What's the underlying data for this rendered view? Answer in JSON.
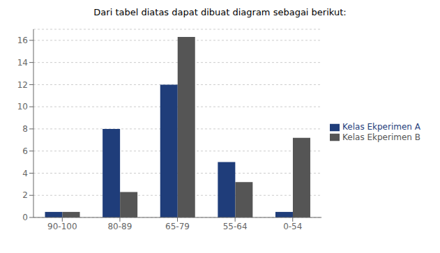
{
  "chart_data": {
    "type": "bar",
    "title": "Dari tabel diatas dapat dibuat diagram sebagai berikut:",
    "categories": [
      "90-100",
      "80-89",
      "65-79",
      "55-64",
      "0-54"
    ],
    "series": [
      {
        "name": "Kelas Ekperimen A",
        "color": "#1F3D7A",
        "values": [
          0.5,
          8,
          12,
          5,
          0.5
        ]
      },
      {
        "name": "Kelas Ekperimen B",
        "color": "#555555",
        "values": [
          0.5,
          2.3,
          16.3,
          3.2,
          7.2
        ]
      }
    ],
    "ylim": [
      0,
      17
    ],
    "yticks": [
      0,
      2,
      4,
      6,
      8,
      10,
      12,
      14,
      16
    ],
    "grid": true,
    "legend": "right"
  }
}
